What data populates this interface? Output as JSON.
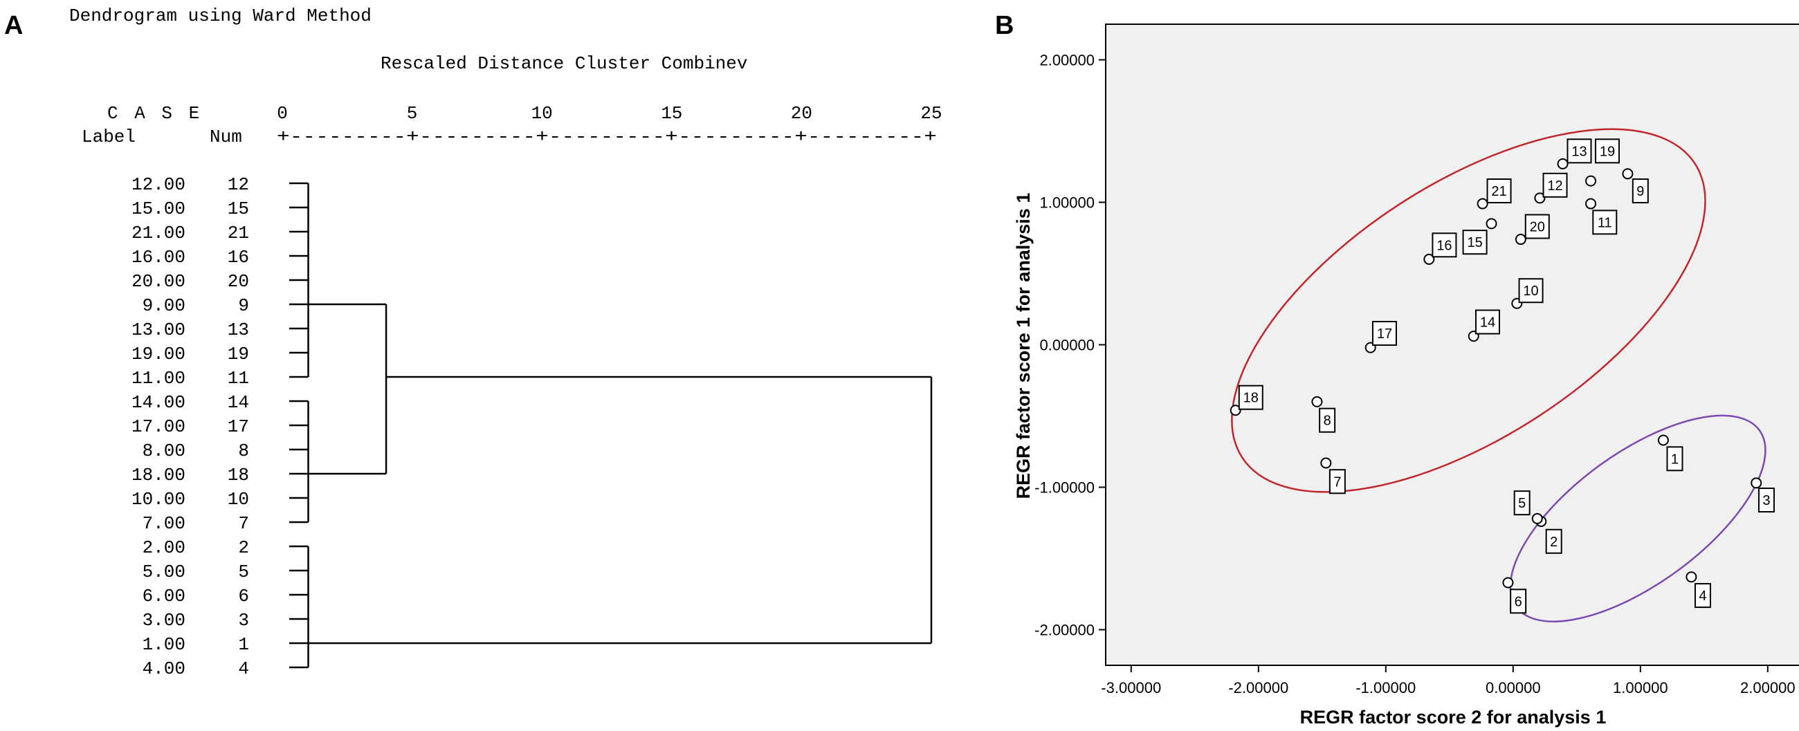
{
  "panels": {
    "a": "A",
    "b": "B"
  },
  "chart_data": [
    {
      "type": "dendrogram",
      "title": "Dendrogram using Ward Method",
      "subtitle": "Rescaled Distance Cluster Combinev",
      "header_case": "C A S E",
      "header_label": "Label",
      "header_num": "Num",
      "axis_ticks": [
        0,
        5,
        10,
        15,
        20,
        25
      ],
      "axis_ticks_text": [
        "0",
        "5",
        "10",
        "15",
        "20",
        "25"
      ],
      "axis_rule": "+---------+---------+---------+---------+---------+",
      "cases": [
        {
          "label": "12.00",
          "num": "12"
        },
        {
          "label": "15.00",
          "num": "15"
        },
        {
          "label": "21.00",
          "num": "21"
        },
        {
          "label": "16.00",
          "num": "16"
        },
        {
          "label": "20.00",
          "num": "20"
        },
        {
          "label": "9.00",
          "num": "9"
        },
        {
          "label": "13.00",
          "num": "13"
        },
        {
          "label": "19.00",
          "num": "19"
        },
        {
          "label": "11.00",
          "num": "11"
        },
        {
          "label": "14.00",
          "num": "14"
        },
        {
          "label": "17.00",
          "num": "17"
        },
        {
          "label": "8.00",
          "num": "8"
        },
        {
          "label": "18.00",
          "num": "18"
        },
        {
          "label": "10.00",
          "num": "10"
        },
        {
          "label": "7.00",
          "num": "7"
        },
        {
          "label": "2.00",
          "num": "2"
        },
        {
          "label": "5.00",
          "num": "5"
        },
        {
          "label": "6.00",
          "num": "6"
        },
        {
          "label": "3.00",
          "num": "3"
        },
        {
          "label": "1.00",
          "num": "1"
        },
        {
          "label": "4.00",
          "num": "4"
        }
      ],
      "merges": [
        {
          "rows": [
            0,
            8
          ],
          "distance": 1,
          "join_row": 5
        },
        {
          "rows": [
            9,
            14
          ],
          "distance": 1,
          "join_row": 12
        },
        {
          "rows": [
            15,
            20
          ],
          "distance": 1,
          "join_row": 19
        },
        {
          "rows": [
            5,
            12
          ],
          "distance": 4,
          "join_row": 8
        },
        {
          "rows": [
            8,
            19
          ],
          "distance": 25
        }
      ]
    },
    {
      "type": "scatter",
      "xlabel": "REGR factor score   2 for analysis 1",
      "ylabel": "REGR factor score   1 for analysis 1",
      "xlim": [
        -3.2,
        2.3
      ],
      "ylim": [
        -2.25,
        2.25
      ],
      "xticks": [
        -3,
        -2,
        -1,
        0,
        1,
        2
      ],
      "yticks": [
        -2,
        -1,
        0,
        1,
        2
      ],
      "xtick_labels": [
        "-3.00000",
        "-2.00000",
        "-1.00000",
        "0.00000",
        "1.00000",
        "2.00000"
      ],
      "ytick_labels": [
        "-2.00000",
        "-1.00000",
        "0.00000",
        "1.00000",
        "2.00000"
      ],
      "plot_background": "#f0f0f0",
      "points": [
        {
          "label": "1",
          "x": 1.18,
          "y": -0.67,
          "lx": 1.27,
          "ly": -0.8
        },
        {
          "label": "2",
          "x": 0.22,
          "y": -1.24,
          "lx": 0.32,
          "ly": -1.38
        },
        {
          "label": "3",
          "x": 1.91,
          "y": -0.97,
          "lx": 1.99,
          "ly": -1.09
        },
        {
          "label": "4",
          "x": 1.4,
          "y": -1.63,
          "lx": 1.49,
          "ly": -1.76
        },
        {
          "label": "5",
          "x": 0.19,
          "y": -1.22,
          "lx": 0.07,
          "ly": -1.11
        },
        {
          "label": "6",
          "x": -0.04,
          "y": -1.67,
          "lx": 0.04,
          "ly": -1.8
        },
        {
          "label": "7",
          "x": -1.47,
          "y": -0.83,
          "lx": -1.38,
          "ly": -0.96
        },
        {
          "label": "8",
          "x": -1.54,
          "y": -0.4,
          "lx": -1.46,
          "ly": -0.53
        },
        {
          "label": "9",
          "x": 0.9,
          "y": 1.2,
          "lx": 1.0,
          "ly": 1.08
        },
        {
          "label": "10",
          "x": 0.03,
          "y": 0.29,
          "lx": 0.14,
          "ly": 0.38
        },
        {
          "label": "11",
          "x": 0.61,
          "y": 0.99,
          "lx": 0.72,
          "ly": 0.86
        },
        {
          "label": "12",
          "x": 0.21,
          "y": 1.03,
          "lx": 0.33,
          "ly": 1.12
        },
        {
          "label": "13",
          "x": 0.39,
          "y": 1.27,
          "lx": 0.52,
          "ly": 1.36
        },
        {
          "label": "14",
          "x": -0.31,
          "y": 0.06,
          "lx": -0.2,
          "ly": 0.16
        },
        {
          "label": "15",
          "x": -0.17,
          "y": 0.85,
          "lx": -0.3,
          "ly": 0.72
        },
        {
          "label": "16",
          "x": -0.66,
          "y": 0.6,
          "lx": -0.54,
          "ly": 0.7
        },
        {
          "label": "17",
          "x": -1.12,
          "y": -0.02,
          "lx": -1.01,
          "ly": 0.08
        },
        {
          "label": "18",
          "x": -2.18,
          "y": -0.46,
          "lx": -2.06,
          "ly": -0.37
        },
        {
          "label": "19",
          "x": 0.61,
          "y": 1.15,
          "lx": 0.74,
          "ly": 1.36
        },
        {
          "label": "20",
          "x": 0.06,
          "y": 0.74,
          "lx": 0.19,
          "ly": 0.83
        },
        {
          "label": "21",
          "x": -0.24,
          "y": 0.99,
          "lx": -0.11,
          "ly": 1.08
        }
      ],
      "ellipses": [
        {
          "color": "#c0272d",
          "cx": -0.35,
          "cy": 0.24,
          "rx": 2.12,
          "ry": 0.89,
          "angle_deg": 33
        },
        {
          "color": "#7a4ab0",
          "cx": 0.98,
          "cy": -1.22,
          "rx": 1.18,
          "ry": 0.46,
          "angle_deg": 36
        }
      ]
    }
  ]
}
